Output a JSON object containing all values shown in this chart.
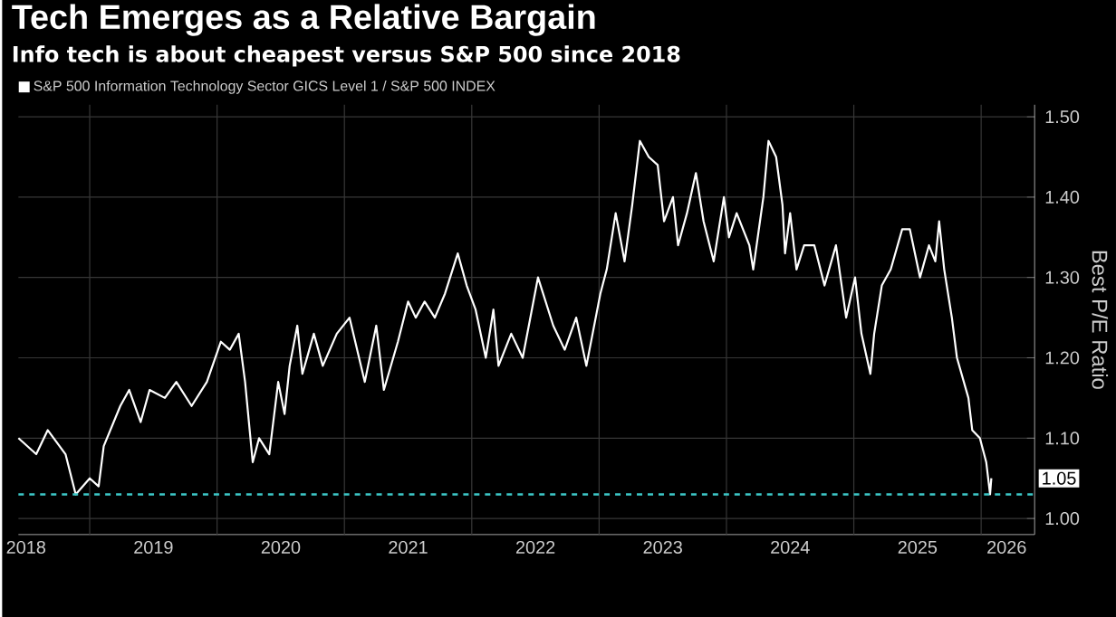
{
  "chart_data": {
    "type": "line",
    "title": "Tech Emerges as a Relative Bargain",
    "subtitle": "Info tech is about cheapest versus S&P 500 since 2018",
    "ylabel": "Best P/E Ratio",
    "series": [
      {
        "name": "S&P 500 Information Technology Sector GICS Level 1 / S&P 500 INDEX",
        "color": "#ffffff",
        "x": [
          2018.44,
          2018.58,
          2018.67,
          2018.81,
          2018.89,
          2019.0,
          2019.07,
          2019.11,
          2019.24,
          2019.31,
          2019.4,
          2019.47,
          2019.59,
          2019.68,
          2019.8,
          2019.92,
          2020.03,
          2020.1,
          2020.17,
          2020.22,
          2020.28,
          2020.33,
          2020.41,
          2020.48,
          2020.53,
          2020.57,
          2020.63,
          2020.67,
          2020.76,
          2020.83,
          2020.94,
          2021.04,
          2021.16,
          2021.25,
          2021.31,
          2021.42,
          2021.5,
          2021.56,
          2021.63,
          2021.71,
          2021.79,
          2021.89,
          2021.96,
          2022.03,
          2022.11,
          2022.17,
          2022.21,
          2022.31,
          2022.4,
          2022.52,
          2022.64,
          2022.73,
          2022.82,
          2022.9,
          2023.01,
          2023.06,
          2023.13,
          2023.2,
          2023.26,
          2023.32,
          2023.39,
          2023.46,
          2023.51,
          2023.58,
          2023.62,
          2023.69,
          2023.76,
          2023.82,
          2023.9,
          2023.98,
          2024.02,
          2024.08,
          2024.18,
          2024.21,
          2024.29,
          2024.33,
          2024.39,
          2024.44,
          2024.46,
          2024.5,
          2024.55,
          2024.61,
          2024.69,
          2024.77,
          2024.86,
          2024.94,
          2025.01,
          2025.06,
          2025.13,
          2025.16,
          2025.22,
          2025.29,
          2025.38,
          2025.44,
          2025.52,
          2025.59,
          2025.64,
          2025.67,
          2025.71,
          2025.77,
          2025.81,
          2025.9,
          2025.93,
          2025.99,
          2026.04,
          2026.07,
          2026.08
        ],
        "values": [
          1.1,
          1.08,
          1.11,
          1.08,
          1.03,
          1.05,
          1.04,
          1.09,
          1.14,
          1.16,
          1.12,
          1.16,
          1.15,
          1.17,
          1.14,
          1.17,
          1.22,
          1.21,
          1.23,
          1.17,
          1.07,
          1.1,
          1.08,
          1.17,
          1.13,
          1.19,
          1.24,
          1.18,
          1.23,
          1.19,
          1.23,
          1.25,
          1.17,
          1.24,
          1.16,
          1.22,
          1.27,
          1.25,
          1.27,
          1.25,
          1.28,
          1.33,
          1.29,
          1.26,
          1.2,
          1.26,
          1.19,
          1.23,
          1.2,
          1.3,
          1.24,
          1.21,
          1.25,
          1.19,
          1.28,
          1.31,
          1.38,
          1.32,
          1.39,
          1.47,
          1.45,
          1.44,
          1.37,
          1.4,
          1.34,
          1.38,
          1.43,
          1.37,
          1.32,
          1.4,
          1.35,
          1.38,
          1.34,
          1.31,
          1.4,
          1.47,
          1.45,
          1.39,
          1.33,
          1.38,
          1.31,
          1.34,
          1.34,
          1.29,
          1.34,
          1.25,
          1.3,
          1.23,
          1.18,
          1.23,
          1.29,
          1.31,
          1.36,
          1.36,
          1.3,
          1.34,
          1.32,
          1.37,
          1.31,
          1.25,
          1.2,
          1.15,
          1.11,
          1.1,
          1.07,
          1.03,
          1.05
        ]
      }
    ],
    "xlim": [
      2018.44,
      2026.42
    ],
    "xticks": [
      {
        "value": 2019,
        "label": null
      },
      {
        "value": 2020,
        "label": null
      },
      {
        "value": 2021,
        "label": null
      },
      {
        "value": 2022,
        "label": null
      },
      {
        "value": 2023,
        "label": null
      },
      {
        "value": 2024,
        "label": null
      },
      {
        "value": 2025,
        "label": null
      },
      {
        "value": 2026,
        "label": null
      },
      {
        "value": 2018.5,
        "label": "2018"
      },
      {
        "value": 2019.5,
        "label": "2019"
      },
      {
        "value": 2020.5,
        "label": "2020"
      },
      {
        "value": 2021.5,
        "label": "2021"
      },
      {
        "value": 2022.5,
        "label": "2022"
      },
      {
        "value": 2023.5,
        "label": "2023"
      },
      {
        "value": 2024.5,
        "label": "2024"
      },
      {
        "value": 2025.5,
        "label": "2025"
      },
      {
        "value": 2026.2,
        "label": "2026"
      }
    ],
    "ylim": [
      0.98,
      1.515
    ],
    "yticks": [
      {
        "value": 1.0,
        "label": "1.00"
      },
      {
        "value": 1.1,
        "label": "1.10"
      },
      {
        "value": 1.2,
        "label": "1.20"
      },
      {
        "value": 1.3,
        "label": "1.30"
      },
      {
        "value": 1.4,
        "label": "1.40"
      },
      {
        "value": 1.5,
        "label": "1.50"
      }
    ],
    "ref_lines": [
      {
        "axis": "y",
        "value": 1.03,
        "color": "#3cc8c8",
        "line_style": "dashed"
      }
    ],
    "annotations": [
      {
        "text": "1.05",
        "x": 2026.08,
        "y": 1.05
      }
    ],
    "grid": true,
    "legend": "top left",
    "marker": "none",
    "line_style": "solid"
  }
}
